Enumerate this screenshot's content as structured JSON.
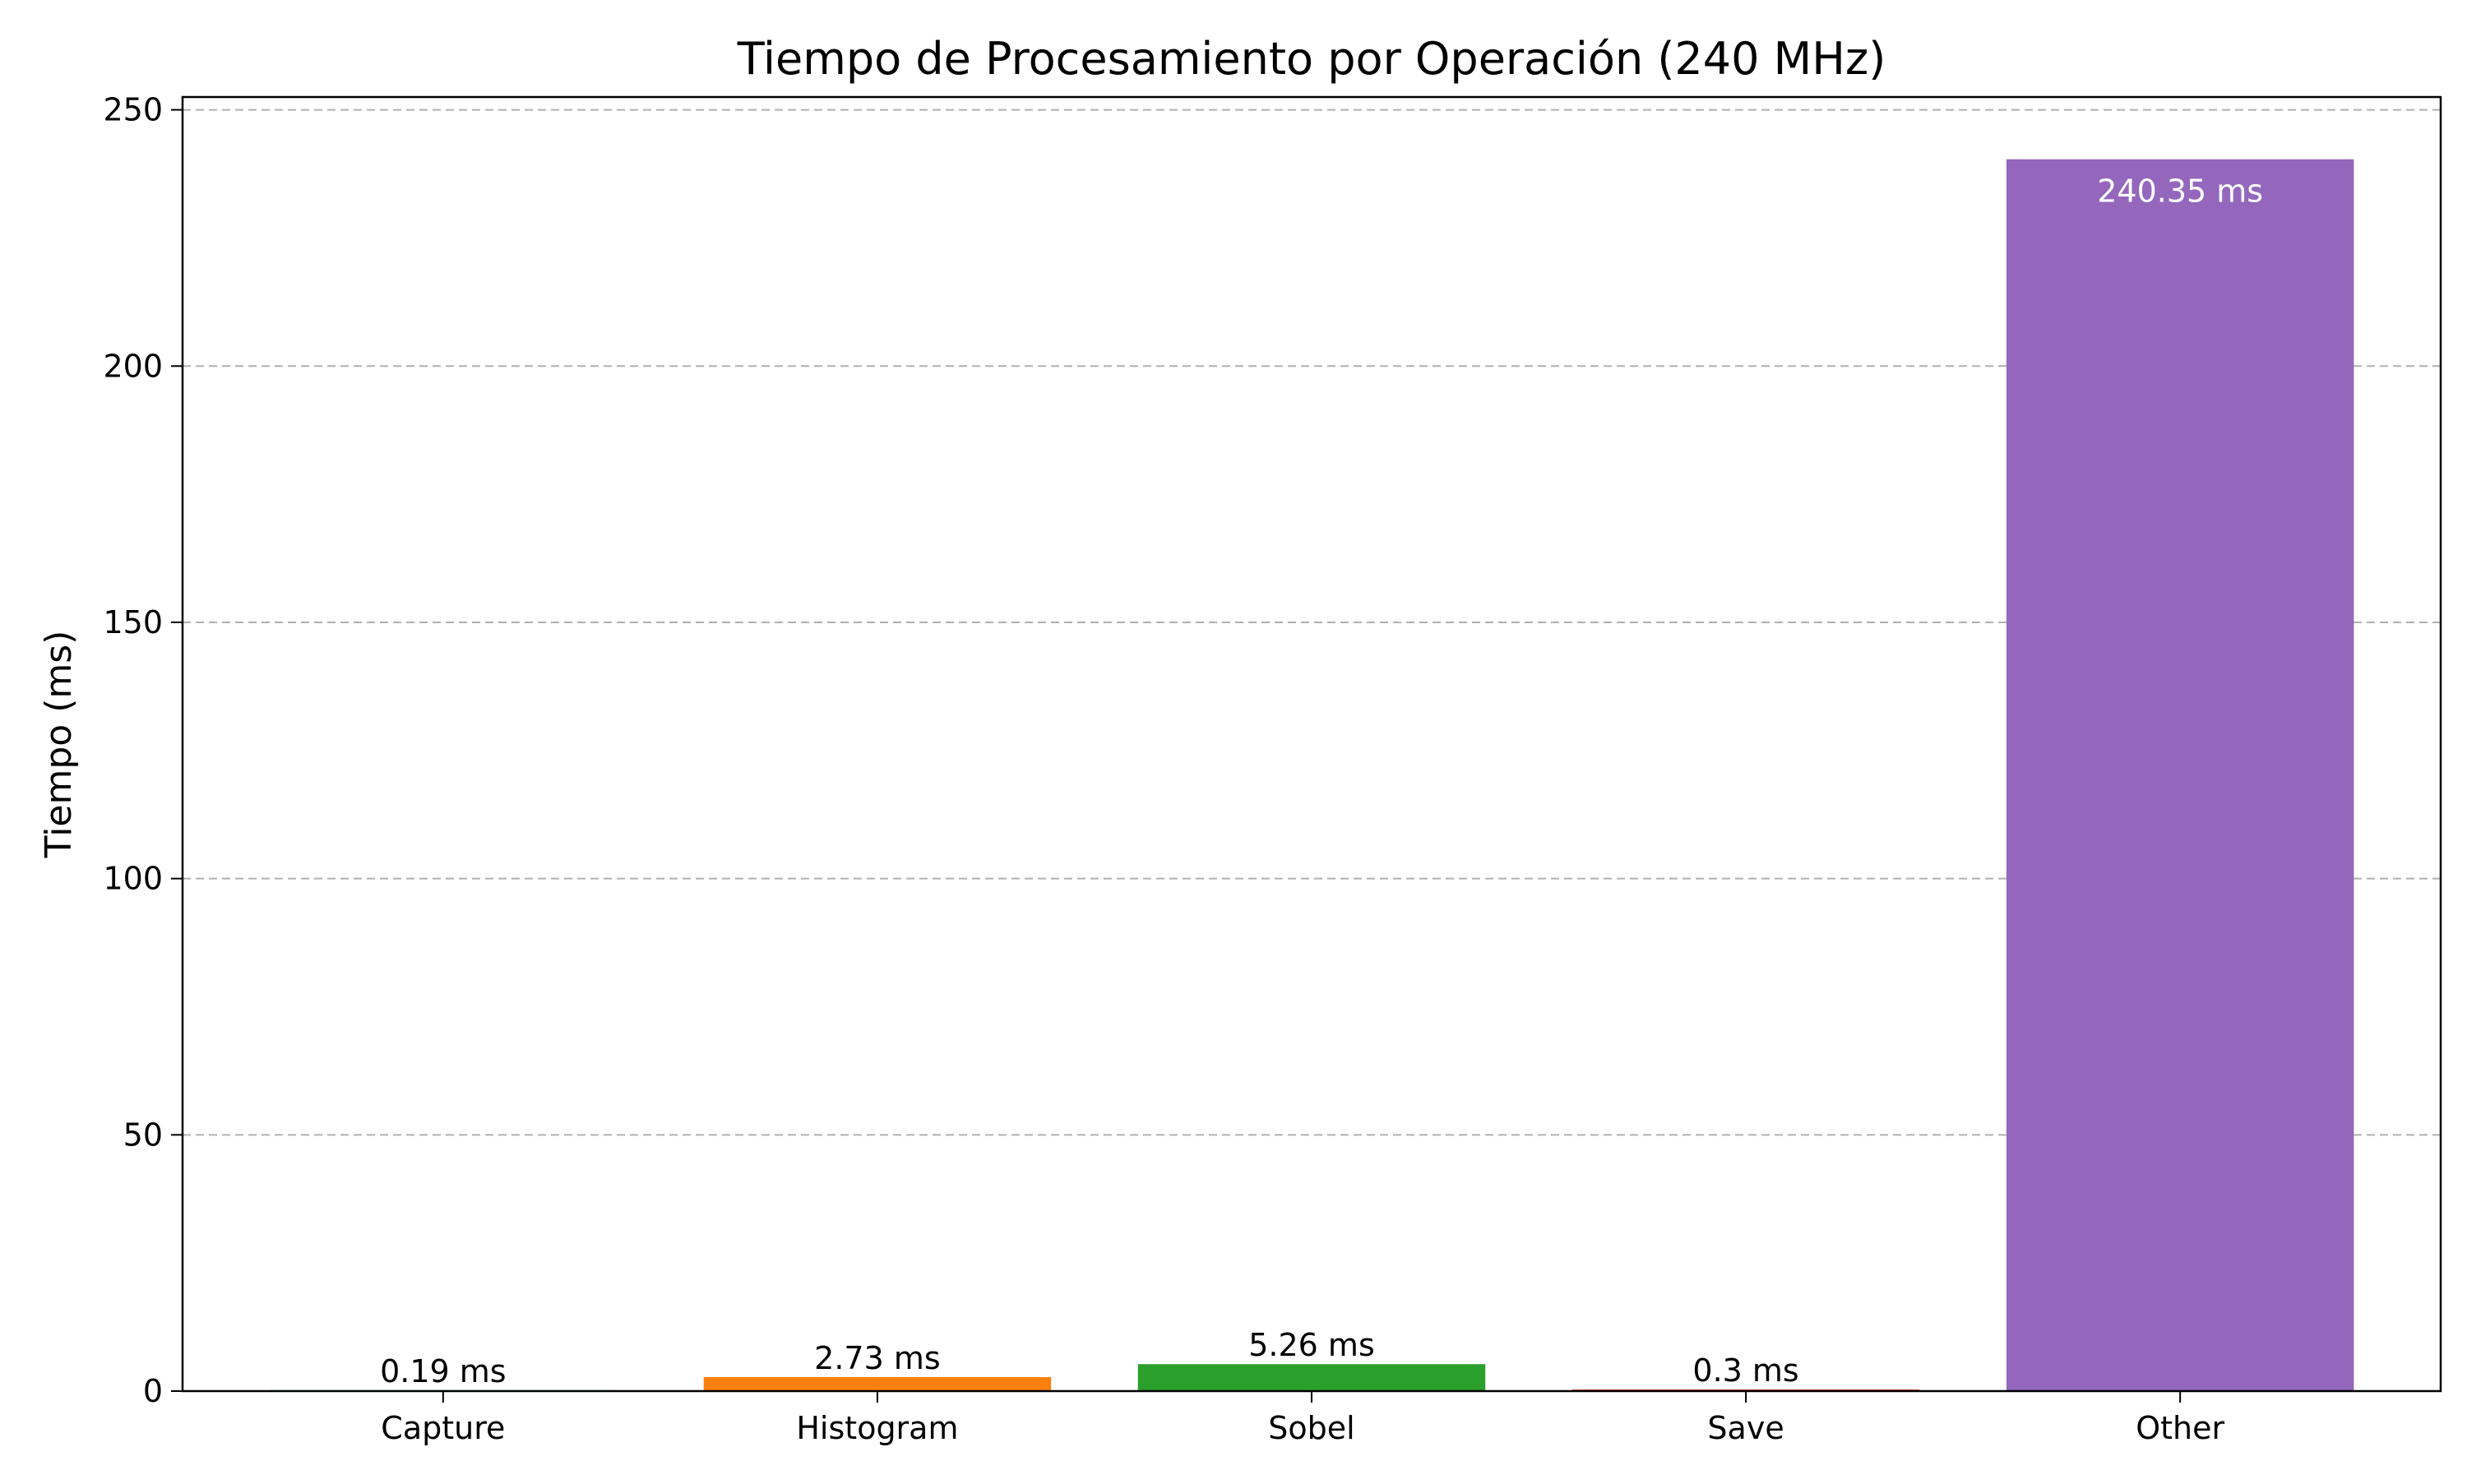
{
  "chart_data": {
    "type": "bar",
    "title": "Tiempo de Procesamiento por Operación (240 MHz)",
    "xlabel": "",
    "ylabel": "Tiempo (ms)",
    "categories": [
      "Capture",
      "Histogram",
      "Sobel",
      "Save",
      "Other"
    ],
    "values": [
      0.19,
      2.73,
      5.26,
      0.3,
      240.35
    ],
    "value_labels": [
      "0.19 ms",
      "2.73 ms",
      "5.26 ms",
      "0.3 ms",
      "240.35 ms"
    ],
    "colors": [
      "#1f77b4",
      "#ff7f0e",
      "#2ca02c",
      "#d62728",
      "#9467bd"
    ],
    "ylim": [
      0,
      252.5
    ],
    "yticks": [
      0,
      50,
      100,
      150,
      200,
      250
    ],
    "grid": {
      "y": true,
      "x": false,
      "style": "dashed"
    },
    "legend": "none"
  }
}
